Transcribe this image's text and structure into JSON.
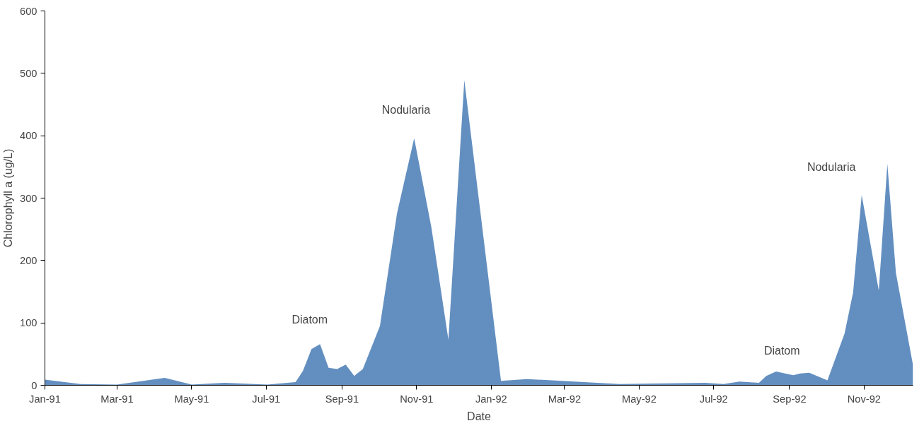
{
  "chart_data": {
    "type": "area",
    "xlabel": "Date",
    "ylabel": "Chlorophyll a (ug/L)",
    "x": [
      "1991-01-01",
      "1991-01-30",
      "1991-03-01",
      "1991-04-09",
      "1991-05-01",
      "1991-05-28",
      "1991-06-21",
      "1991-07-02",
      "1991-07-25",
      "1991-07-31",
      "1991-08-07",
      "1991-08-14",
      "1991-08-21",
      "1991-08-28",
      "1991-09-04",
      "1991-09-11",
      "1991-09-18",
      "1991-10-02",
      "1991-10-16",
      "1991-10-30",
      "1991-11-13",
      "1991-11-27",
      "1991-12-10",
      "1992-01-09",
      "1992-01-30",
      "1992-04-15",
      "1992-06-24",
      "1992-07-09",
      "1992-07-22",
      "1992-08-07",
      "1992-08-13",
      "1992-08-21",
      "1992-09-04",
      "1992-09-10",
      "1992-09-17",
      "1992-10-02",
      "1992-10-16",
      "1992-10-23",
      "1992-10-30",
      "1992-11-13",
      "1992-11-20",
      "1992-11-27",
      "1992-12-11"
    ],
    "series": [
      {
        "color": "#638fc0",
        "values": [
          9,
          2,
          1,
          12,
          1,
          4,
          2,
          1,
          5,
          23,
          58,
          66,
          28,
          26,
          33,
          15,
          26,
          95,
          276,
          396,
          254,
          73,
          489,
          7,
          10,
          2,
          4,
          2,
          6,
          4,
          15,
          22,
          16,
          19,
          20,
          8,
          83,
          149,
          305,
          152,
          355,
          180,
          32
        ]
      }
    ],
    "xlim": [
      "1991-01-01",
      "1992-12-11"
    ],
    "xticks": [
      {
        "value": "1991-01-01",
        "label": "Jan-91"
      },
      {
        "value": "1991-03-01",
        "label": "Mar-91"
      },
      {
        "value": "1991-05-01",
        "label": "May-91"
      },
      {
        "value": "1991-07-01",
        "label": "Jul-91"
      },
      {
        "value": "1991-09-01",
        "label": "Sep-91"
      },
      {
        "value": "1991-11-01",
        "label": "Nov-91"
      },
      {
        "value": "1992-01-01",
        "label": "Jan-92"
      },
      {
        "value": "1992-03-01",
        "label": "Mar-92"
      },
      {
        "value": "1992-05-01",
        "label": "May-92"
      },
      {
        "value": "1992-07-01",
        "label": "Jul-92"
      },
      {
        "value": "1992-09-01",
        "label": "Sep-92"
      },
      {
        "value": "1992-11-01",
        "label": "Nov-92"
      }
    ],
    "ylim": [
      0,
      600
    ],
    "yticks": [
      0,
      100,
      200,
      300,
      400,
      500,
      600
    ],
    "grid": false,
    "annotations": [
      "Diatom",
      "Nodularia",
      "Diatom",
      "Nodularia"
    ]
  }
}
